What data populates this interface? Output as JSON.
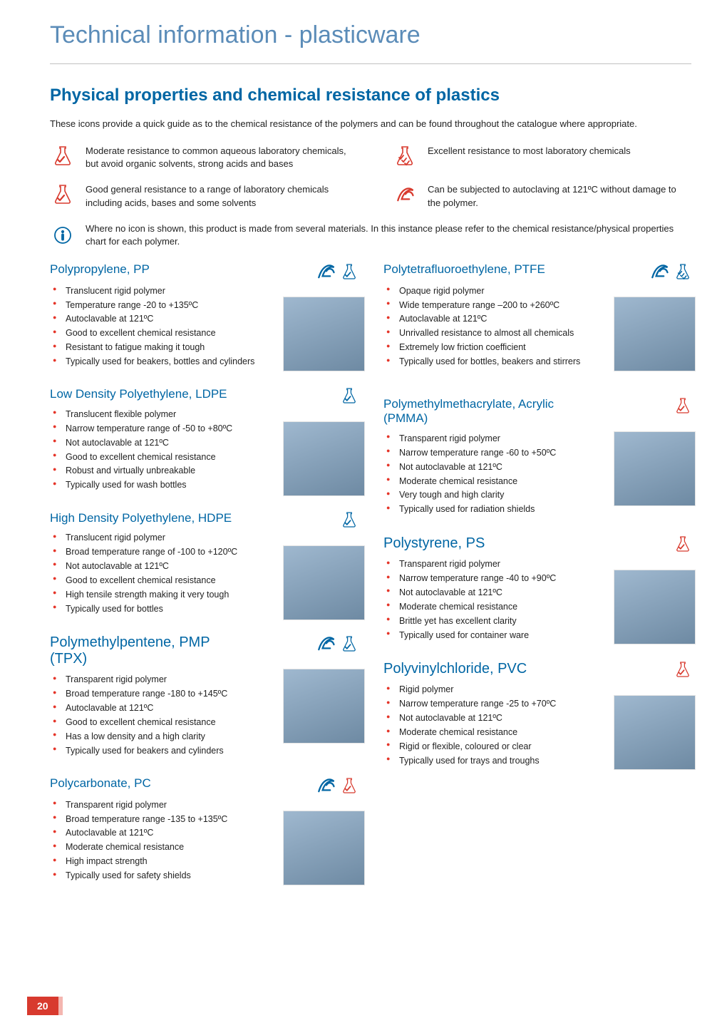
{
  "colors": {
    "title_blue": "#5b8cb8",
    "heading_blue": "#0066a4",
    "accent_red": "#d83a2e",
    "bullet_red": "#e53529",
    "bullet_blue": "#0070b8",
    "text": "#222222"
  },
  "main_title": "Technical information - plasticware",
  "section_title": "Physical properties and chemical resistance of plastics",
  "intro": "These icons provide a quick guide as to the chemical resistance of the polymers and can be found throughout the catalogue where appropriate.",
  "legend": [
    {
      "icon": "flask-tick-red",
      "text": "Moderate resistance to common aqueous laboratory chemicals, but avoid organic solvents, strong acids and bases"
    },
    {
      "icon": "flask-ticks-red",
      "text": "Excellent resistance to most laboratory chemicals"
    },
    {
      "icon": "flask-tick-red",
      "text": "Good general resistance to a range of laboratory chemicals including acids, bases and some solvents"
    },
    {
      "icon": "script-a-red",
      "text": "Can be subjected to autoclaving at 121ºC without damage to the polymer."
    },
    {
      "icon": "info-blue",
      "text": "Where no icon is shown, this product is made from several materials.  In this instance please refer to the chemical resistance/physical properties chart for each polymer.",
      "wide": true
    }
  ],
  "left_column": [
    {
      "title": "Polypropylene, PP",
      "title_size": "normal",
      "icons": [
        "script-a-blue",
        "flask-tick-blue"
      ],
      "bullet_color": "#e53529",
      "items": [
        "Translucent rigid polymer",
        "Temperature range -20 to +135ºC",
        "Autoclavable at 121ºC",
        "Good to excellent chemical resistance",
        "Resistant to fatigue making it tough",
        "Typically used for beakers, bottles and cylinders"
      ]
    },
    {
      "title": "Low Density Polyethylene, LDPE",
      "title_size": "normal",
      "icons": [
        "flask-tick-blue"
      ],
      "bullet_color": "#e53529",
      "items": [
        "Translucent flexible polymer",
        "Narrow temperature range of -50 to +80ºC",
        "Not autoclavable at 121ºC",
        "Good to excellent chemical resistance",
        "Robust and virtually unbreakable",
        "Typically used for wash bottles"
      ]
    },
    {
      "title": "High Density Polyethylene, HDPE",
      "title_size": "normal",
      "icons": [
        "flask-tick-blue"
      ],
      "bullet_color": "#e53529",
      "items": [
        "Translucent rigid polymer",
        "Broad temperature range of -100 to +120ºC",
        "Not autoclavable at 121ºC",
        "Good to excellent chemical resistance",
        "High tensile strength making it very tough",
        "Typically used for bottles"
      ]
    },
    {
      "title": "Polymethylpentene, PMP (TPX)",
      "title_size": "big",
      "icons": [
        "script-a-blue",
        "flask-tick-blue"
      ],
      "bullet_color": "#e53529",
      "items": [
        "Transparent rigid polymer",
        "Broad temperature range -180 to +145ºC",
        "Autoclavable at 121ºC",
        "Good to excellent chemical resistance",
        "Has a low density and a high clarity",
        "Typically used for beakers and cylinders"
      ]
    },
    {
      "title": "Polycarbonate, PC",
      "title_size": "normal",
      "icons": [
        "script-a-blue",
        "flask-tick-red-sm"
      ],
      "bullet_color": "#e53529",
      "items": [
        "Transparent rigid polymer",
        "Broad temperature range -135 to +135ºC",
        "Autoclavable at 121ºC",
        "Moderate chemical resistance",
        "High impact strength",
        "Typically used for safety shields"
      ]
    }
  ],
  "right_column": [
    {
      "title": "Polytetrafluoroethylene, PTFE",
      "title_size": "normal",
      "icons": [
        "script-a-blue",
        "flask-ticks-blue"
      ],
      "bullet_color": "#0070b8",
      "items": [
        "Opaque rigid polymer",
        "Wide temperature range –200 to +260ºC",
        "Autoclavable at 121ºC",
        "Unrivalled resistance to almost all chemicals",
        "Extremely low friction coefficient",
        "Typically used for bottles, beakers and stirrers"
      ]
    },
    {
      "title": "Polymethylmethacrylate, Acrylic (PMMA)",
      "title_size": "normal",
      "icons": [
        "flask-tick-red-sm"
      ],
      "bullet_color": "#0070b8",
      "items": [
        "Transparent rigid polymer",
        "Narrow temperature range -60 to +50ºC",
        "Not autoclavable at 121ºC",
        "Moderate chemical resistance",
        "Very tough and high clarity",
        "Typically used for radiation shields"
      ],
      "gap_before": 40
    },
    {
      "title": "Polystyrene, PS",
      "title_size": "big",
      "icons": [
        "flask-tick-red-sm"
      ],
      "bullet_color": "#0070b8",
      "items": [
        "Transparent rigid polymer",
        "Narrow temperature range -40 to +90ºC",
        "Not autoclavable at 121ºC",
        "Moderate chemical resistance",
        "Brittle yet has excellent clarity",
        "Typically used for container ware"
      ]
    },
    {
      "title": "Polyvinylchloride, PVC",
      "title_size": "big",
      "icons": [
        "flask-tick-red-sm"
      ],
      "bullet_color": "#0070b8",
      "items": [
        "Rigid polymer",
        "Narrow temperature range -25 to +70ºC",
        "Not autoclavable at 121ºC",
        "Moderate chemical resistance",
        "Rigid or flexible, coloured or clear",
        "Typically used for trays and troughs"
      ]
    }
  ],
  "page_number": "20"
}
